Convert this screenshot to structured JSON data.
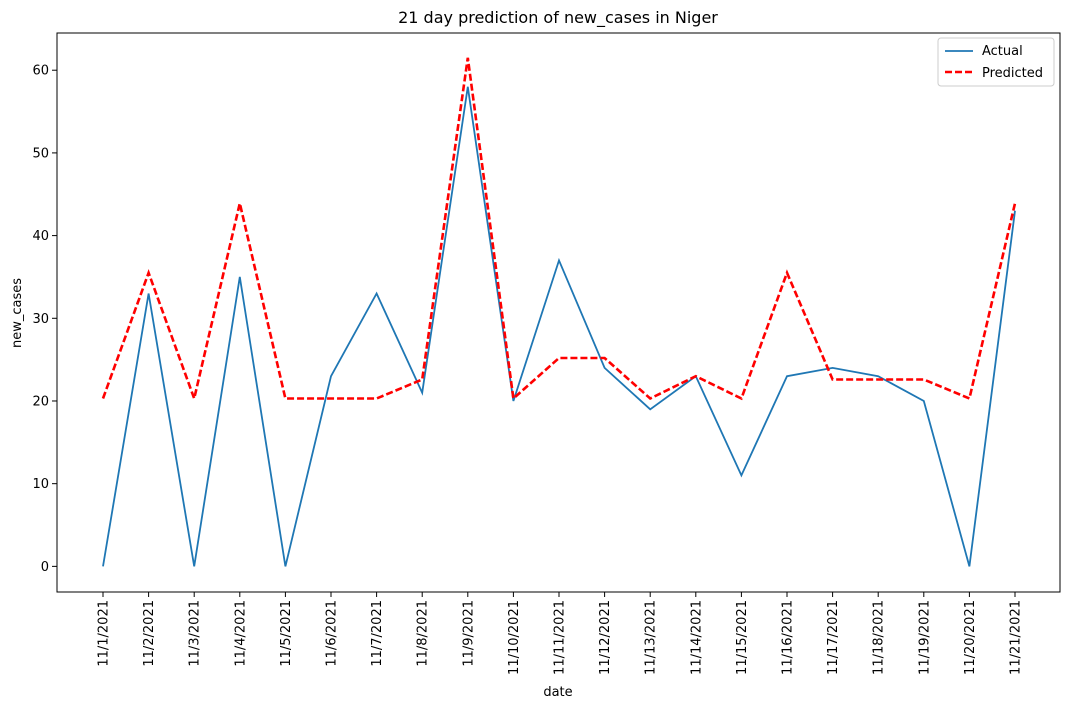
{
  "chart_data": {
    "type": "line",
    "title": "21 day prediction of new_cases in Niger",
    "xlabel": "date",
    "ylabel": "new_cases",
    "categories": [
      "11/1/2021",
      "11/2/2021",
      "11/3/2021",
      "11/4/2021",
      "11/5/2021",
      "11/6/2021",
      "11/7/2021",
      "11/8/2021",
      "11/9/2021",
      "11/10/2021",
      "11/11/2021",
      "11/12/2021",
      "11/13/2021",
      "11/14/2021",
      "11/15/2021",
      "11/16/2021",
      "11/17/2021",
      "11/18/2021",
      "11/19/2021",
      "11/20/2021",
      "11/21/2021"
    ],
    "yticks": [
      0,
      10,
      20,
      30,
      40,
      50,
      60
    ],
    "ylim": [
      -3.1,
      64.5
    ],
    "grid": false,
    "legend_position": "top-right",
    "series": [
      {
        "name": "Actual",
        "color": "#1f77b4",
        "style": "solid",
        "values": [
          0,
          33,
          0,
          35,
          0,
          23,
          33,
          21,
          58,
          20,
          37,
          24,
          19,
          23,
          11,
          23,
          24,
          23,
          20,
          0,
          43
        ]
      },
      {
        "name": "Predicted",
        "color": "#ff0000",
        "style": "dashed",
        "values": [
          20.3,
          35.5,
          20.3,
          43.9,
          20.3,
          20.3,
          20.3,
          22.6,
          61.5,
          20.3,
          25.2,
          25.2,
          20.3,
          23.0,
          20.3,
          35.5,
          22.6,
          22.6,
          22.6,
          20.3,
          43.9
        ]
      }
    ]
  }
}
